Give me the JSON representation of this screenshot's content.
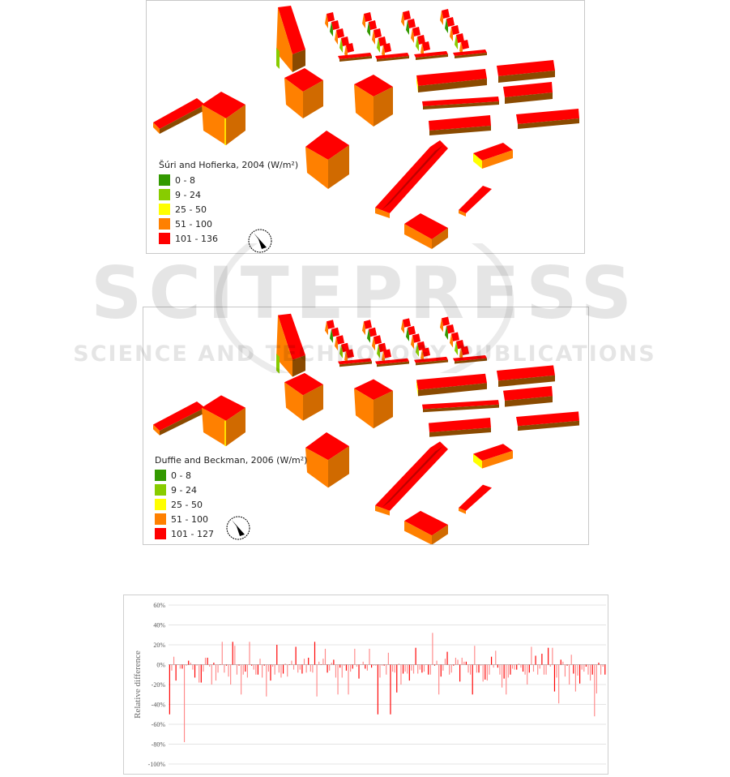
{
  "maps": [
    {
      "legend_title": "Šúri and Hofierka, 2004 (W/m²)",
      "classes": [
        {
          "label": "0 - 8",
          "color": "#339900"
        },
        {
          "label": "9 - 24",
          "color": "#88cc00"
        },
        {
          "label": "25 - 50",
          "color": "#ffff00"
        },
        {
          "label": "51 - 100",
          "color": "#ff8000"
        },
        {
          "label": "101 - 136",
          "color": "#ff0000"
        }
      ]
    },
    {
      "legend_title": "Duffie and Beckman, 2006 (W/m²)",
      "classes": [
        {
          "label": "0 - 8",
          "color": "#339900"
        },
        {
          "label": "9 - 24",
          "color": "#88cc00"
        },
        {
          "label": "25 - 50",
          "color": "#ffff00"
        },
        {
          "label": "51 - 100",
          "color": "#ff8000"
        },
        {
          "label": "101 - 127",
          "color": "#ff0000"
        }
      ]
    }
  ],
  "watermark": {
    "main": "SCITEPRESS",
    "sub": "SCIENCE AND TECHNOLOGY PUBLICATIONS"
  },
  "chart_data": {
    "type": "bar",
    "title": "",
    "xlabel": "",
    "ylabel": "Relative difference",
    "ylim": [
      -100,
      60
    ],
    "yticks": [
      "60%",
      "40%",
      "20%",
      "0%",
      "-20%",
      "-40%",
      "-60%",
      "-80%",
      "-100%"
    ],
    "grid": true,
    "colors": [
      "#ff0000",
      "#ff8a8a"
    ],
    "values": [
      -50,
      -6,
      8,
      -16,
      0,
      -4,
      -4,
      -78,
      -1,
      4,
      2,
      -5,
      -13,
      -1,
      -18,
      -18,
      -7,
      7,
      7,
      -2,
      -20,
      2,
      -16,
      -8,
      0,
      23,
      -8,
      -1,
      -12,
      -20,
      23,
      19,
      -10,
      -1,
      -30,
      -10,
      -7,
      -13,
      23,
      -1,
      -5,
      -10,
      -10,
      6,
      -13,
      -1,
      -32,
      -7,
      -16,
      -2,
      -10,
      20,
      -8,
      -13,
      -9,
      1,
      -12,
      0,
      4,
      -5,
      18,
      -8,
      -5,
      -9,
      6,
      -8,
      7,
      -7,
      -8,
      23,
      -32,
      3,
      0,
      6,
      16,
      -8,
      -6,
      2,
      5,
      -13,
      -30,
      -3,
      -13,
      -1,
      -6,
      -30,
      -7,
      -4,
      16,
      -2,
      -14,
      0,
      3,
      -4,
      -6,
      16,
      -3,
      -1,
      -1,
      -50,
      -13,
      -1,
      -1,
      -10,
      12,
      -50,
      -7,
      -8,
      -28,
      1,
      -20,
      -9,
      -7,
      -9,
      -16,
      -6,
      -9,
      17,
      -9,
      -5,
      -8,
      -7,
      0,
      -10,
      -10,
      32,
      -1,
      4,
      -30,
      -12,
      -6,
      6,
      13,
      -10,
      -8,
      -1,
      7,
      5,
      -17,
      7,
      3,
      3,
      -8,
      -10,
      -30,
      19,
      -8,
      -8,
      -1,
      -17,
      -15,
      -16,
      -10,
      8,
      -3,
      14,
      -3,
      -10,
      -23,
      -14,
      -30,
      -13,
      -10,
      -4,
      -5,
      -5,
      1,
      -3,
      -7,
      -10,
      -20,
      -8,
      18,
      -7,
      9,
      -10,
      -4,
      11,
      -10,
      -10,
      17,
      -2,
      17,
      -27,
      -13,
      -39,
      5,
      3,
      -12,
      -1,
      -20,
      10,
      -9,
      -27,
      -11,
      -19,
      -5,
      -7,
      -2,
      -10,
      -16,
      -10,
      -52,
      -29,
      2,
      -10,
      -2,
      -10
    ]
  }
}
